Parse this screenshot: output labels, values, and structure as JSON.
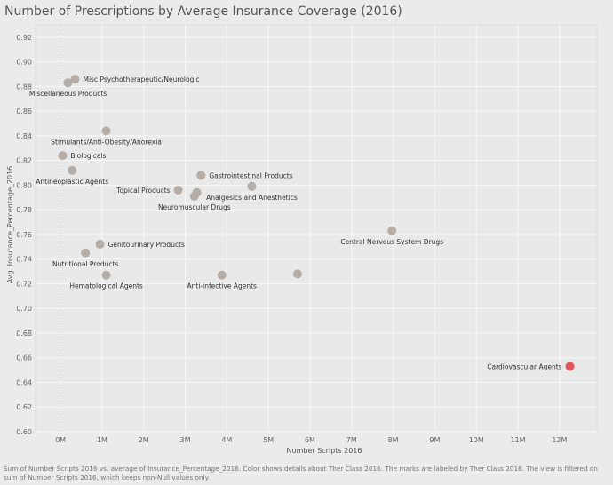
{
  "title": "Number of Prescriptions by Average Insurance Coverage (2016)",
  "footnote": "Sum of Number Scripts 2016 vs. average of Insurance_Percentage_2016. Color shows details about Ther Class 2016. The marks are labeled by Ther Class 2016. The view is filtered on sum of Number Scripts 2016, which keeps non-Null values only.",
  "chart_data": {
    "type": "scatter",
    "xlabel": "Number Scripts 2016",
    "ylabel": "Avg. Insurance_Percentage_2016",
    "xlim": [
      -600000,
      12900000
    ],
    "ylim": [
      0.6,
      0.93
    ],
    "x_ticks": [
      0,
      1000000,
      2000000,
      3000000,
      4000000,
      5000000,
      6000000,
      7000000,
      8000000,
      9000000,
      10000000,
      11000000,
      12000000
    ],
    "x_tick_labels": [
      "0M",
      "1M",
      "2M",
      "3M",
      "4M",
      "5M",
      "6M",
      "7M",
      "8M",
      "9M",
      "10M",
      "11M",
      "12M"
    ],
    "y_ticks": [
      0.6,
      0.62,
      0.64,
      0.66,
      0.68,
      0.7,
      0.72,
      0.74,
      0.76,
      0.78,
      0.8,
      0.82,
      0.84,
      0.86,
      0.88,
      0.9,
      0.92
    ],
    "y_tick_labels": [
      "0.60",
      "0.62",
      "0.64",
      "0.66",
      "0.68",
      "0.70",
      "0.72",
      "0.74",
      "0.76",
      "0.78",
      "0.80",
      "0.82",
      "0.84",
      "0.86",
      "0.88",
      "0.90",
      "0.92"
    ],
    "grid": true,
    "point_color": "#b7ada7",
    "highlight_color": "#e15759",
    "points": [
      {
        "label": "Misc Psychotherapeutic/Neurologic",
        "x": 350000,
        "y": 0.886,
        "label_pos": "right"
      },
      {
        "label": "Miscellaneous Products",
        "x": 180000,
        "y": 0.883,
        "label_pos": "below"
      },
      {
        "label": "Stimulants/Anti-Obesity/Anorexia",
        "x": 1100000,
        "y": 0.844,
        "label_pos": "below"
      },
      {
        "label": "Biologicals",
        "x": 50000,
        "y": 0.824,
        "label_pos": "right"
      },
      {
        "label": "Antineoplastic Agents",
        "x": 280000,
        "y": 0.812,
        "label_pos": "below"
      },
      {
        "label": "Gastrointestinal Products",
        "x": 3380000,
        "y": 0.808,
        "label_pos": "right"
      },
      {
        "label": "Topical Products",
        "x": 2830000,
        "y": 0.796,
        "label_pos": "left"
      },
      {
        "label": "Analgesics and Anesthetics",
        "x": 4600000,
        "y": 0.799,
        "label_pos": "below"
      },
      {
        "label": "Neuromuscular Drugs",
        "x": 3220000,
        "y": 0.791,
        "label_pos": "below"
      },
      {
        "label": "",
        "x": 3280000,
        "y": 0.794,
        "label_pos": "none"
      },
      {
        "label": "Central Nervous System Drugs",
        "x": 7970000,
        "y": 0.763,
        "label_pos": "below"
      },
      {
        "label": "Genitourinary Products",
        "x": 950000,
        "y": 0.752,
        "label_pos": "right"
      },
      {
        "label": "Nutritional Products",
        "x": 600000,
        "y": 0.745,
        "label_pos": "below"
      },
      {
        "label": "Hematological Agents",
        "x": 1100000,
        "y": 0.727,
        "label_pos": "below"
      },
      {
        "label": "Anti-infective Agents",
        "x": 3880000,
        "y": 0.727,
        "label_pos": "below"
      },
      {
        "label": "",
        "x": 5700000,
        "y": 0.728,
        "label_pos": "none"
      },
      {
        "label": "Cardiovascular Agents",
        "x": 12250000,
        "y": 0.653,
        "label_pos": "left",
        "highlight": true
      }
    ]
  }
}
